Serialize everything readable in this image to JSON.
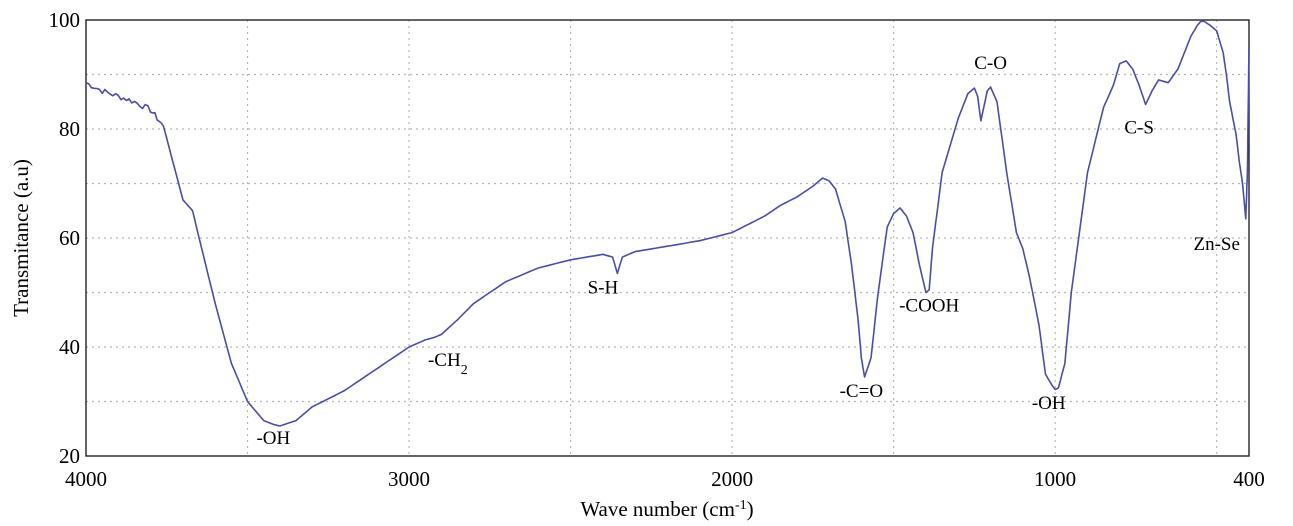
{
  "chart_data": {
    "type": "line",
    "title": "",
    "xlabel": "Wave number (cm",
    "xlabel_sup": "-1",
    "xlabel_suffix": ")",
    "ylabel": "Transmitance (a.u)",
    "xlim": [
      4000,
      400
    ],
    "x_reversed": true,
    "ylim": [
      20,
      100
    ],
    "grid": true,
    "x_ticks": [
      4000,
      3000,
      2000,
      1000,
      400
    ],
    "x_tick_labels": [
      "4000",
      "3000",
      "2000",
      "1000",
      "400"
    ],
    "x_minor_grid": [
      3500,
      2500,
      1500,
      500
    ],
    "y_ticks": [
      20,
      40,
      60,
      80,
      100
    ],
    "y_tick_labels": [
      "20",
      "40",
      "60",
      "80",
      "100"
    ],
    "y_minor_grid": [
      30,
      50,
      70,
      90
    ],
    "series": [
      {
        "color": "#4a4ea6",
        "x": [
          4000,
          3950,
          3900,
          3850,
          3800,
          3760,
          3740,
          3700,
          3670,
          3650,
          3600,
          3550,
          3500,
          3450,
          3420,
          3400,
          3350,
          3300,
          3200,
          3100,
          3000,
          2950,
          2920,
          2900,
          2850,
          2800,
          2700,
          2600,
          2500,
          2400,
          2370,
          2355,
          2340,
          2300,
          2200,
          2100,
          2000,
          1950,
          1900,
          1850,
          1800,
          1750,
          1720,
          1700,
          1680,
          1650,
          1630,
          1610,
          1600,
          1590,
          1570,
          1550,
          1520,
          1500,
          1480,
          1460,
          1440,
          1420,
          1400,
          1390,
          1380,
          1350,
          1300,
          1270,
          1250,
          1240,
          1230,
          1210,
          1200,
          1180,
          1150,
          1120,
          1100,
          1080,
          1050,
          1030,
          1010,
          1000,
          990,
          970,
          950,
          900,
          850,
          820,
          800,
          780,
          760,
          740,
          720,
          700,
          680,
          650,
          620,
          600,
          580,
          560,
          550,
          540,
          520,
          500,
          480,
          470,
          460,
          440,
          430,
          420,
          410,
          405,
          400
        ],
        "y": [
          88.5,
          87,
          86,
          85,
          83.5,
          80.5,
          76,
          67,
          65,
          60,
          48,
          37,
          30,
          26.5,
          25.8,
          25.5,
          26.5,
          29,
          32,
          36,
          40,
          41.3,
          41.8,
          42.3,
          45,
          48,
          52,
          54.5,
          56,
          57,
          56.5,
          53.5,
          56.5,
          57.5,
          58.5,
          59.5,
          61,
          62.5,
          64,
          66,
          67.5,
          69.5,
          71,
          70.5,
          69,
          63,
          55,
          45,
          38,
          34.5,
          38,
          49,
          62,
          64.5,
          65.5,
          64,
          61,
          55,
          50,
          50.5,
          58,
          72,
          82,
          86.5,
          87.5,
          86,
          81.5,
          87,
          87.7,
          85,
          72,
          61,
          58,
          53,
          44,
          35,
          33,
          32.2,
          32.5,
          37,
          50,
          72,
          84,
          88,
          92,
          92.5,
          91,
          88,
          84.5,
          87,
          89,
          88.5,
          91,
          94,
          97,
          99,
          99.7,
          99.8,
          99,
          98,
          94,
          90,
          85,
          79,
          74,
          70,
          63.5,
          72,
          95
        ]
      }
    ],
    "annotations": [
      {
        "text": "-OH",
        "x": 3420,
        "y": 22.2
      },
      {
        "text": "-CH",
        "sub": "2",
        "x": 2880,
        "y": 36.5
      },
      {
        "text": "S-H",
        "x": 2400,
        "y": 49.8
      },
      {
        "text": "-C=O",
        "x": 1600,
        "y": 30.8
      },
      {
        "text": "-COOH",
        "x": 1390,
        "y": 46.5
      },
      {
        "text": "C-O",
        "x": 1200,
        "y": 91
      },
      {
        "text": "-OH",
        "x": 1020,
        "y": 28.6
      },
      {
        "text": "C-S",
        "x": 740,
        "y": 79.2
      },
      {
        "text": "Zn-Se",
        "x": 500,
        "y": 57.8
      }
    ]
  }
}
